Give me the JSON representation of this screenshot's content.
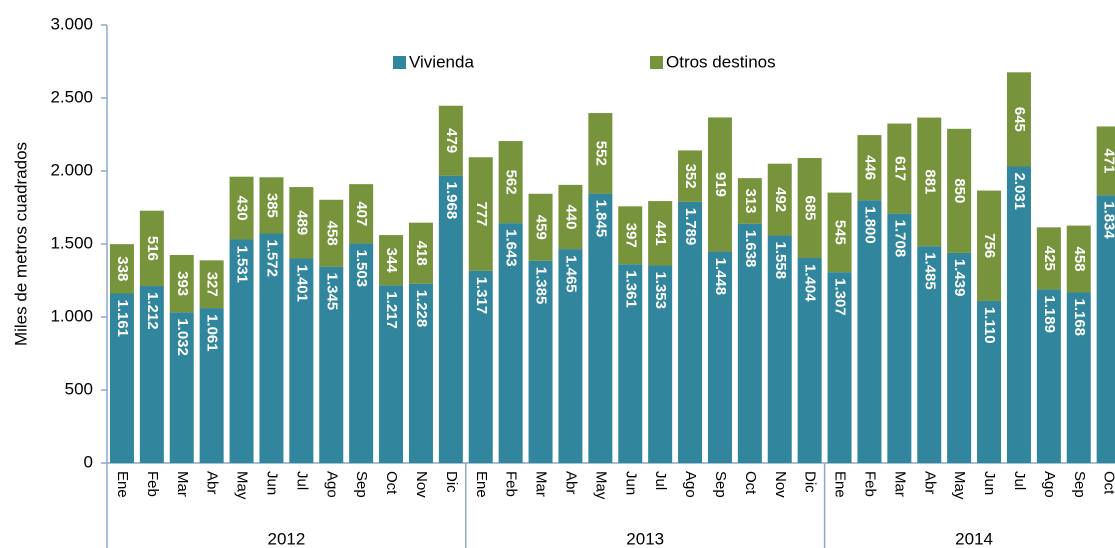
{
  "chart_data": {
    "type": "stacked_bar",
    "y_label": "Miles de metros cuadrados",
    "categories": [
      "Ene",
      "Feb",
      "Mar",
      "Abr",
      "May",
      "Jun",
      "Jul",
      "Ago",
      "Sep",
      "Oct",
      "Nov",
      "Dic",
      "Ene",
      "Feb",
      "Mar",
      "Abr",
      "May",
      "Jun",
      "Jul",
      "Ago",
      "Sep",
      "Oct",
      "Nov",
      "Dic",
      "Ene",
      "Feb",
      "Mar",
      "Abr",
      "May",
      "Jun",
      "Jul",
      "Ago",
      "Sep",
      "Oct"
    ],
    "x_groups": [
      {
        "label": "2012",
        "count": 12
      },
      {
        "label": "2013",
        "count": 12
      },
      {
        "label": "2014",
        "count": 10
      }
    ],
    "series": [
      {
        "name": "Vivienda",
        "color": "#31859c",
        "values": [
          1161,
          1212,
          1032,
          1061,
          1531,
          1572,
          1401,
          1345,
          1503,
          1217,
          1228,
          1968,
          1317,
          1643,
          1385,
          1465,
          1845,
          1361,
          1353,
          1789,
          1448,
          1638,
          1558,
          1404,
          1307,
          1800,
          1708,
          1485,
          1439,
          1110,
          2031,
          1189,
          1168,
          1834
        ],
        "value_labels": [
          "1.161",
          "1.212",
          "1.032",
          "1.061",
          "1.531",
          "1.572",
          "1.401",
          "1.345",
          "1.503",
          "1.217",
          "1.228",
          "1.968",
          "1.317",
          "1.643",
          "1.385",
          "1.465",
          "1.845",
          "1.361",
          "1.353",
          "1.789",
          "1.448",
          "1.638",
          "1.558",
          "1.404",
          "1.307",
          "1.800",
          "1.708",
          "1.485",
          "1.439",
          "1.110",
          "2.031",
          "1.189",
          "1.168",
          "1.834"
        ]
      },
      {
        "name": "Otros destinos",
        "color": "#77933c",
        "values": [
          338,
          516,
          393,
          327,
          430,
          385,
          489,
          458,
          407,
          344,
          418,
          479,
          777,
          562,
          459,
          440,
          552,
          397,
          441,
          352,
          919,
          313,
          492,
          685,
          545,
          446,
          617,
          881,
          850,
          756,
          645,
          425,
          458,
          471
        ]
      }
    ],
    "ylim": [
      0,
      3000
    ],
    "yticks": [
      0,
      500,
      {
        "value": 1000,
        "label": "1.000"
      },
      {
        "value": 1500,
        "label": "1.500"
      },
      {
        "value": 2000,
        "label": "2.000"
      },
      {
        "value": 2500,
        "label": "2.500"
      },
      {
        "value": 3000,
        "label": "3.000"
      }
    ],
    "legend": "top"
  }
}
